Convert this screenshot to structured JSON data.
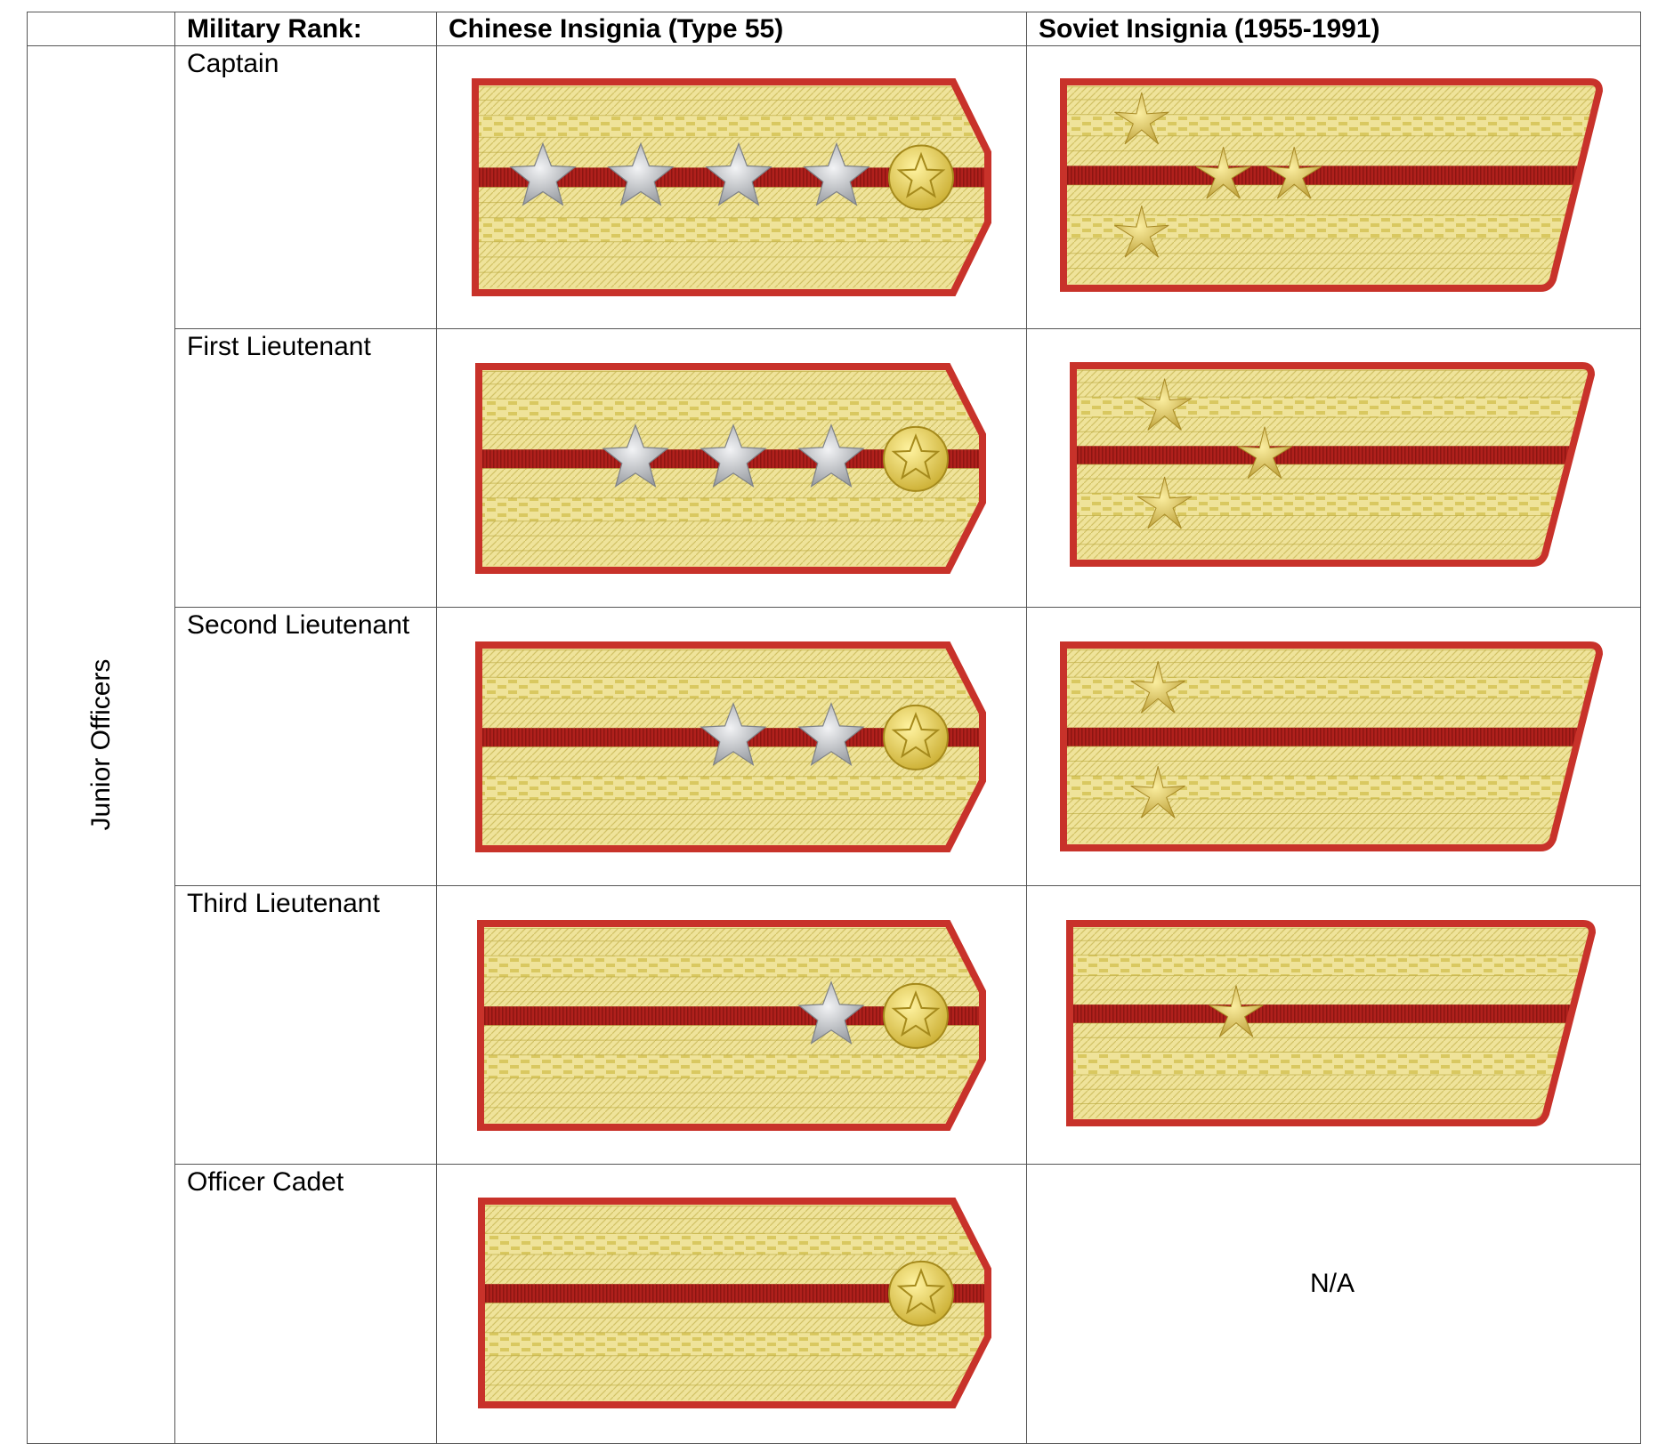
{
  "table": {
    "headers": {
      "group": "",
      "rank": "Military Rank:",
      "chinese": "Chinese Insignia (Type 55)",
      "soviet": "Soviet Insignia (1955-1991)"
    },
    "group_label": "Junior Officers",
    "rows": [
      {
        "rank": "Captain",
        "chinese_stars": 4,
        "soviet_stars": 4,
        "soviet_pattern": "captain",
        "soviet_value": ""
      },
      {
        "rank": "First Lieutenant",
        "chinese_stars": 3,
        "soviet_stars": 3,
        "soviet_pattern": "first-lieutenant",
        "soviet_value": ""
      },
      {
        "rank": "Second Lieutenant",
        "chinese_stars": 2,
        "soviet_stars": 2,
        "soviet_pattern": "second-lieutenant",
        "soviet_value": ""
      },
      {
        "rank": "Third Lieutenant",
        "chinese_stars": 1,
        "soviet_stars": 1,
        "soviet_pattern": "third-lieutenant",
        "soviet_value": ""
      },
      {
        "rank": "Officer Cadet",
        "chinese_stars": 0,
        "soviet_stars": 0,
        "soviet_pattern": "none",
        "soviet_value": "N/A"
      }
    ]
  },
  "colors": {
    "border_red": "#c8322a",
    "gold_light": "#efe39a",
    "gold_mid": "#d9c860",
    "gold_dark": "#b8a63a",
    "stripe_red": "#b0201c",
    "silver_star": "#b8bcc2",
    "gold_star": "#d8c055",
    "grid_line": "#555555"
  }
}
